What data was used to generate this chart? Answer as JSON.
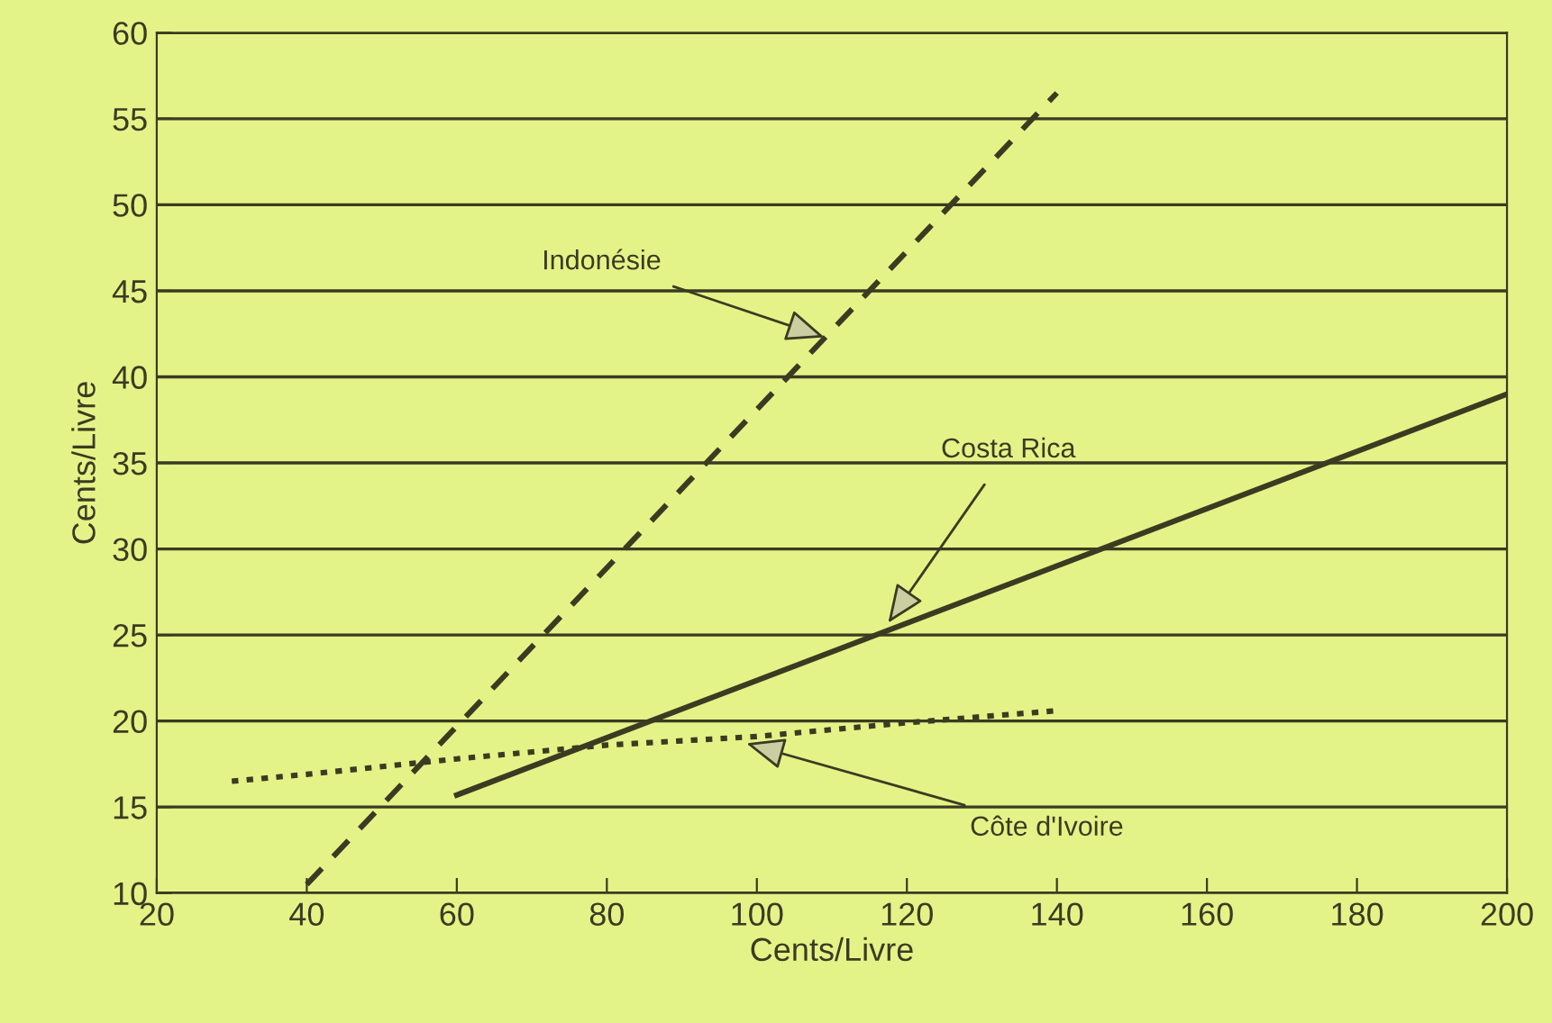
{
  "chart_data": {
    "type": "line",
    "xlabel": "Cents/Livre",
    "ylabel": "Cents/Livre",
    "xlim": [
      20,
      200
    ],
    "xticks": [
      20,
      40,
      60,
      80,
      100,
      120,
      140,
      160,
      180,
      200
    ],
    "ylim": [
      10,
      60
    ],
    "yticks": [
      10,
      15,
      20,
      25,
      30,
      35,
      40,
      45,
      50,
      55,
      60
    ],
    "grid": "y",
    "series": [
      {
        "color": "#3b3b22",
        "line_style": "dashed",
        "x": [
          40,
          140
        ],
        "values": [
          10.5,
          56.5
        ]
      },
      {
        "color": "#3b3b22",
        "line_style": "solid",
        "x": [
          60,
          200
        ],
        "values": [
          15.7,
          39
        ]
      },
      {
        "color": "#3b3b22",
        "line_style": "dotted",
        "x": [
          30,
          40,
          60,
          80,
          100,
          120,
          140
        ],
        "values": [
          16.5,
          16.9,
          17.8,
          18.6,
          19.1,
          19.9,
          20.6
        ]
      }
    ],
    "annotations": [
      {
        "text": "Indonésie",
        "x": 109,
        "y": 42.3
      },
      {
        "text": "Costa Rica",
        "x": 117.5,
        "y": 25.7
      },
      {
        "text": "Côte d'Ivoire",
        "x": 98.6,
        "y": 18.7
      }
    ]
  }
}
